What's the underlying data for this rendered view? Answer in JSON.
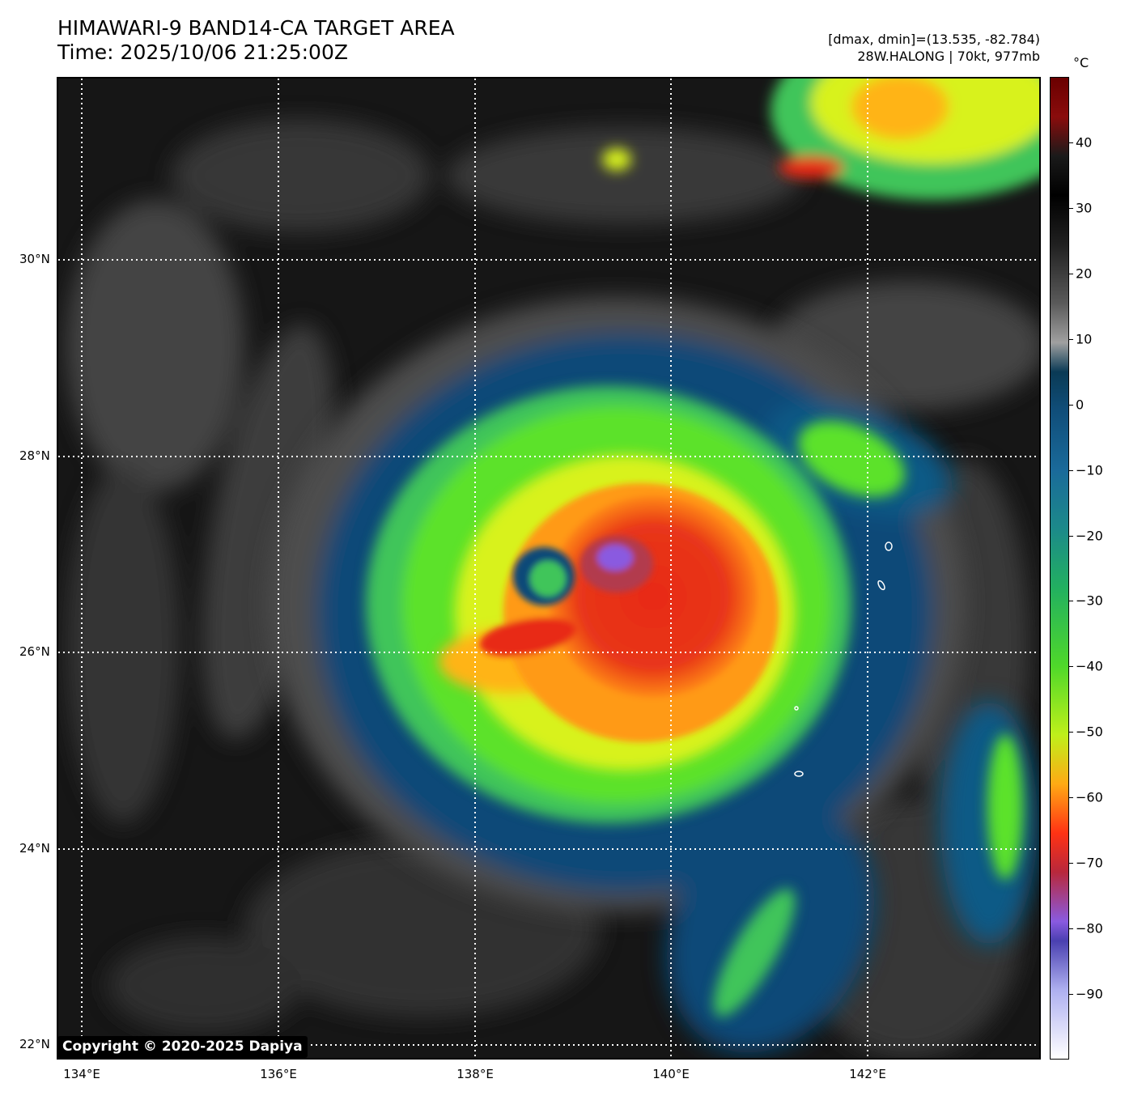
{
  "header": {
    "title_line1": "HIMAWARI-9 BAND14-CA TARGET AREA",
    "title_line2": "Time: 2025/10/06 21:25:00Z",
    "info_line1": "[dmax, dmin]=(13.535, -82.784)",
    "info_line2": "28W.HALONG | 70kt, 977mb"
  },
  "map": {
    "lat_labels": [
      "30°N",
      "28°N",
      "26°N",
      "24°N",
      "22°N"
    ],
    "lon_labels": [
      "134°E",
      "136°E",
      "138°E",
      "140°E",
      "142°E"
    ],
    "copyright": "Copyright © 2020-2025 Dapiya"
  },
  "colorbar": {
    "unit": "°C",
    "tick_labels": [
      "40",
      "30",
      "20",
      "10",
      "0",
      "−10",
      "−20",
      "−30",
      "−40",
      "−50",
      "−60",
      "−70",
      "−80",
      "−90"
    ],
    "tick_values": [
      40,
      30,
      20,
      10,
      0,
      -10,
      -20,
      -30,
      -40,
      -50,
      -60,
      -70,
      -80,
      -90
    ],
    "range": [
      -100,
      50
    ]
  },
  "colors": {
    "clear_sky": "#151515",
    "low_cloud": "#6e6e6e",
    "mid_cloud": "#0d4a78",
    "high_cloud_green": "#5ce22a",
    "high_cloud_yellow": "#d8f21a",
    "cold_orange": "#ff9a12",
    "cold_red": "#e82a14",
    "coldest_purple": "#8a5ae0"
  }
}
